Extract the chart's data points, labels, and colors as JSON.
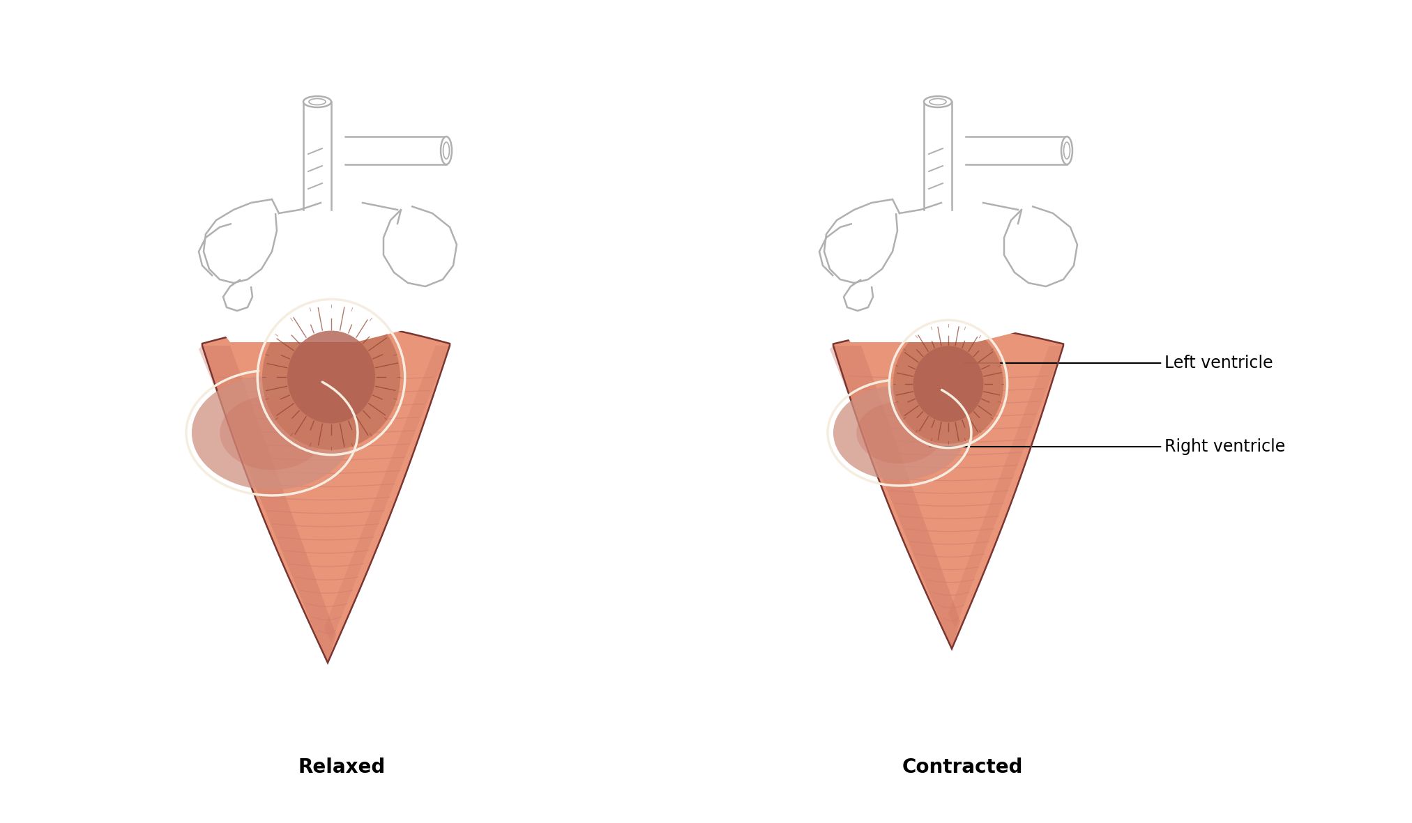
{
  "bg_color": "#ffffff",
  "outline_color": "#b0b0b0",
  "muscle_base": "#e8957a",
  "muscle_shadow": "#c97060",
  "muscle_line": "#d08070",
  "muscle_dark": "#b86050",
  "lv_fill": "#c87860",
  "lv_inner": "#b06050",
  "rv_fill": "#d09080",
  "cream": "#f5ede0",
  "annotation_color": "#000000",
  "label_relaxed": "Relaxed",
  "label_contracted": "Contracted",
  "label_left_ventricle": "Left ventricle",
  "label_right_ventricle": "Right ventricle",
  "label_fontsize": 20,
  "annotation_fontsize": 17,
  "fig_width": 20.25,
  "fig_height": 11.81
}
